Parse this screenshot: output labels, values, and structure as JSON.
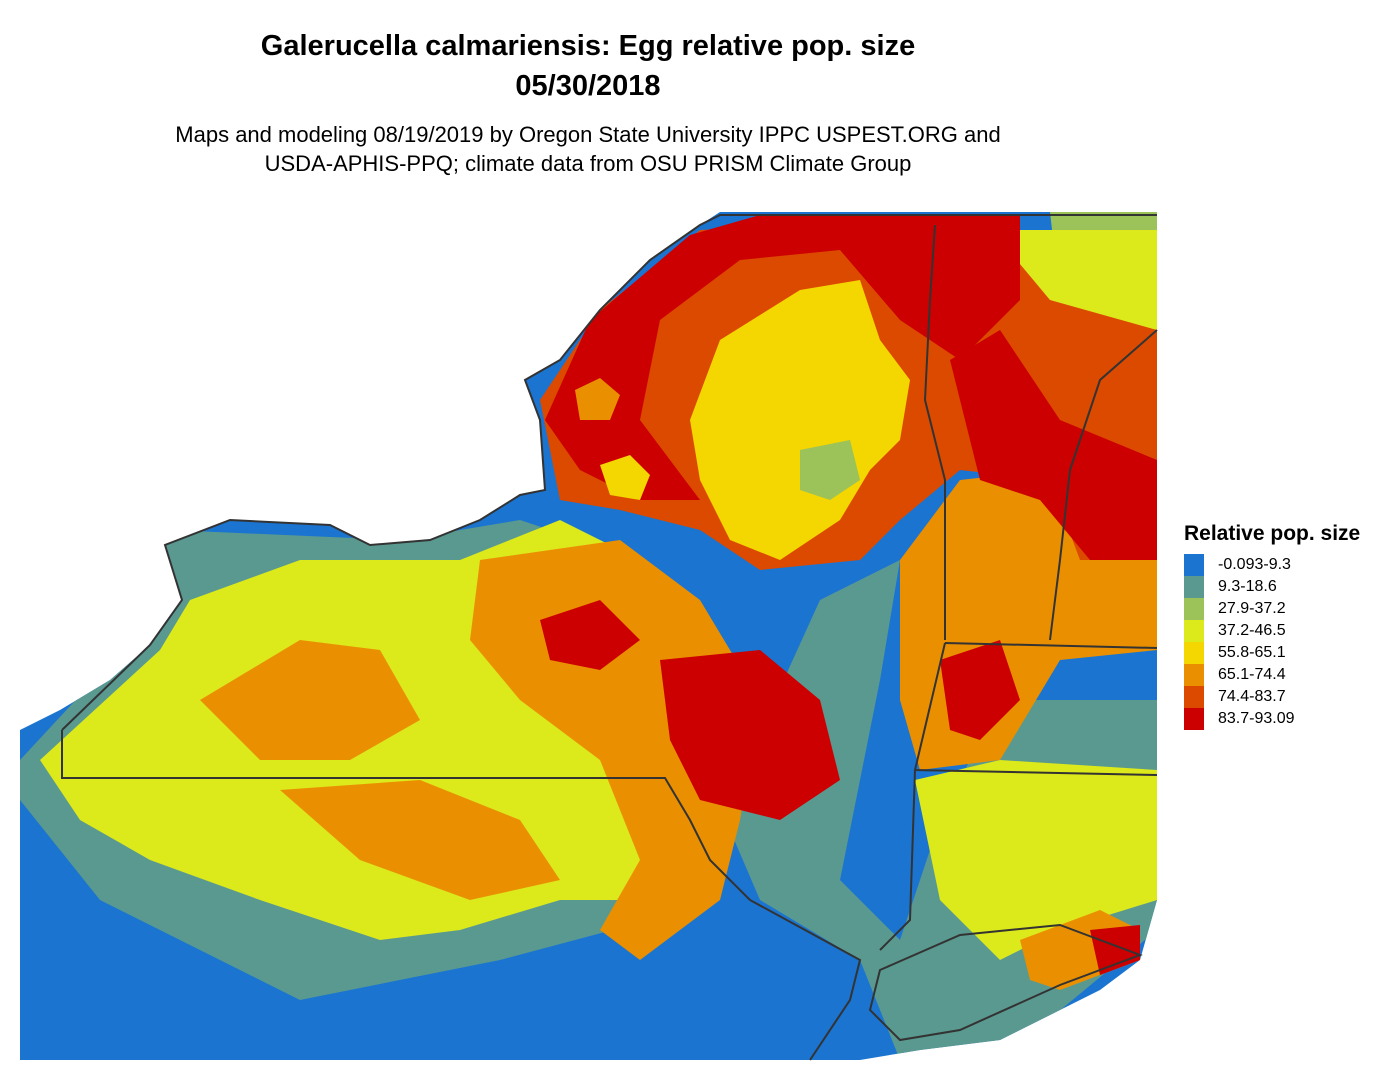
{
  "title": {
    "line1": "Galerucella calmariensis: Egg relative pop. size",
    "line2": "05/30/2018"
  },
  "subtitle": {
    "line1": "Maps and modeling 08/19/2019 by Oregon State University IPPC USPEST.ORG and",
    "line2": "USDA-APHIS-PPQ; climate data from OSU PRISM Climate Group"
  },
  "legend": {
    "title": "Relative pop. size",
    "items": [
      {
        "label": "-0.093-9.3",
        "color": "#1a74d0"
      },
      {
        "label": "9.3-18.6",
        "color": "#5a9990"
      },
      {
        "label": "27.9-37.2",
        "color": "#9cc25a"
      },
      {
        "label": "37.2-46.5",
        "color": "#dce91a"
      },
      {
        "label": "55.8-65.1",
        "color": "#f4d600"
      },
      {
        "label": "65.1-74.4",
        "color": "#ea9000"
      },
      {
        "label": "74.4-83.7",
        "color": "#dc4a00"
      },
      {
        "label": "83.7-93.09",
        "color": "#cc0000"
      }
    ]
  },
  "boundary_color": "#333333"
}
